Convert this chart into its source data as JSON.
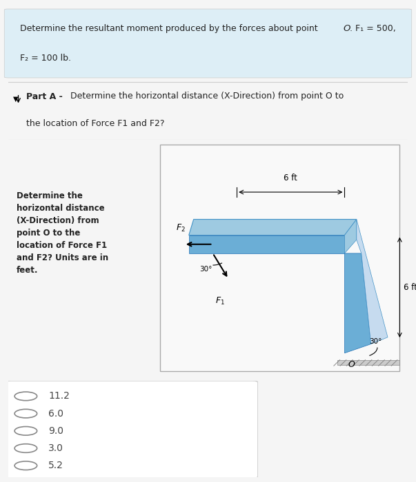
{
  "header_text_line1": "Determine the resultant moment produced by the forces about point ",
  "header_O": "O",
  "header_text_line1b": ". F₁ = 500,",
  "header_text_line2": "F₂ = 100 lb.",
  "header_bg": "#ddeef6",
  "part_a_bold": "Part A - ",
  "part_a_text": "Determine the horizontal distance (X-Direction) from point O to\nthe location of Force F1 and F2?",
  "diagram_text": "Determine the\nhorizontal distance\n(X-Direction) from\npoint O to the\nlocation of Force F1\nand F2? Units are in\nfeet.",
  "choices": [
    "11.2",
    "6.0",
    "9.0",
    "3.0",
    "5.2"
  ],
  "bg_color": "#f5f5f5",
  "white": "#ffffff",
  "light_blue_bg": "#ddeef6",
  "border_color": "#cccccc",
  "text_color": "#222222",
  "diagram_beam_color": "#6baed6",
  "diagram_beam_dark": "#2171b5"
}
